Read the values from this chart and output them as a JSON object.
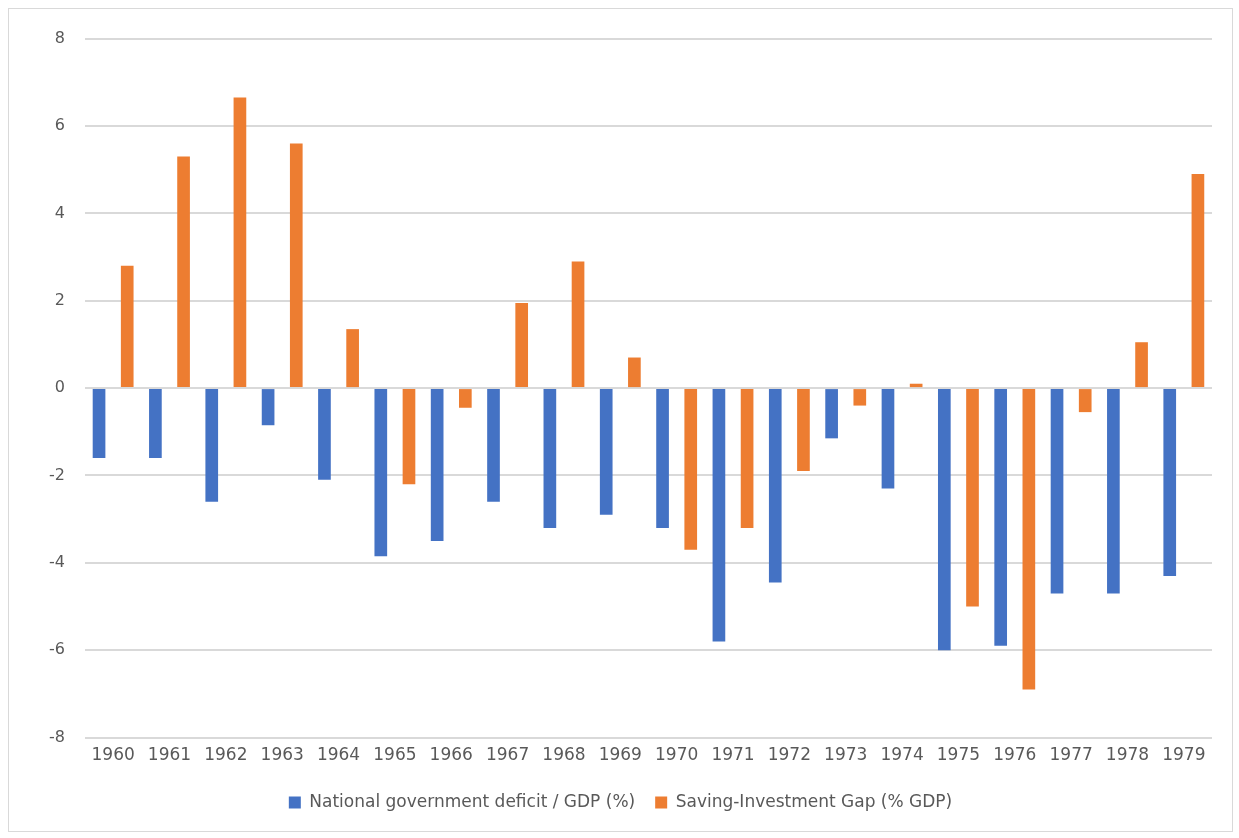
{
  "chart_data": {
    "type": "bar",
    "categories": [
      "1960",
      "1961",
      "1962",
      "1963",
      "1964",
      "1965",
      "1966",
      "1967",
      "1968",
      "1969",
      "1970",
      "1971",
      "1972",
      "1973",
      "1974",
      "1975",
      "1976",
      "1977",
      "1978",
      "1979"
    ],
    "series": [
      {
        "name": "National government deficit / GDP (%)",
        "color": "#4472c4",
        "values": [
          -1.6,
          -1.6,
          -2.6,
          -0.85,
          -2.1,
          -3.85,
          -3.5,
          -2.6,
          -3.2,
          -2.9,
          -3.2,
          -5.8,
          -4.45,
          -1.15,
          -2.3,
          -6.0,
          -5.9,
          -4.7,
          -4.7,
          -4.3
        ]
      },
      {
        "name": "Saving-Investment Gap (% GDP)",
        "color": "#ed7d31",
        "values": [
          2.8,
          5.3,
          6.65,
          5.6,
          1.35,
          -2.2,
          -0.45,
          1.95,
          2.9,
          0.7,
          -3.7,
          -3.2,
          -1.9,
          -0.4,
          0.1,
          -5.0,
          -6.9,
          -0.55,
          1.05,
          4.9
        ]
      }
    ],
    "ylim": [
      -8,
      8
    ],
    "yticks": [
      -8,
      -6,
      -4,
      -2,
      0,
      2,
      4,
      6,
      8
    ],
    "grid": "y",
    "legend": "bottom"
  }
}
